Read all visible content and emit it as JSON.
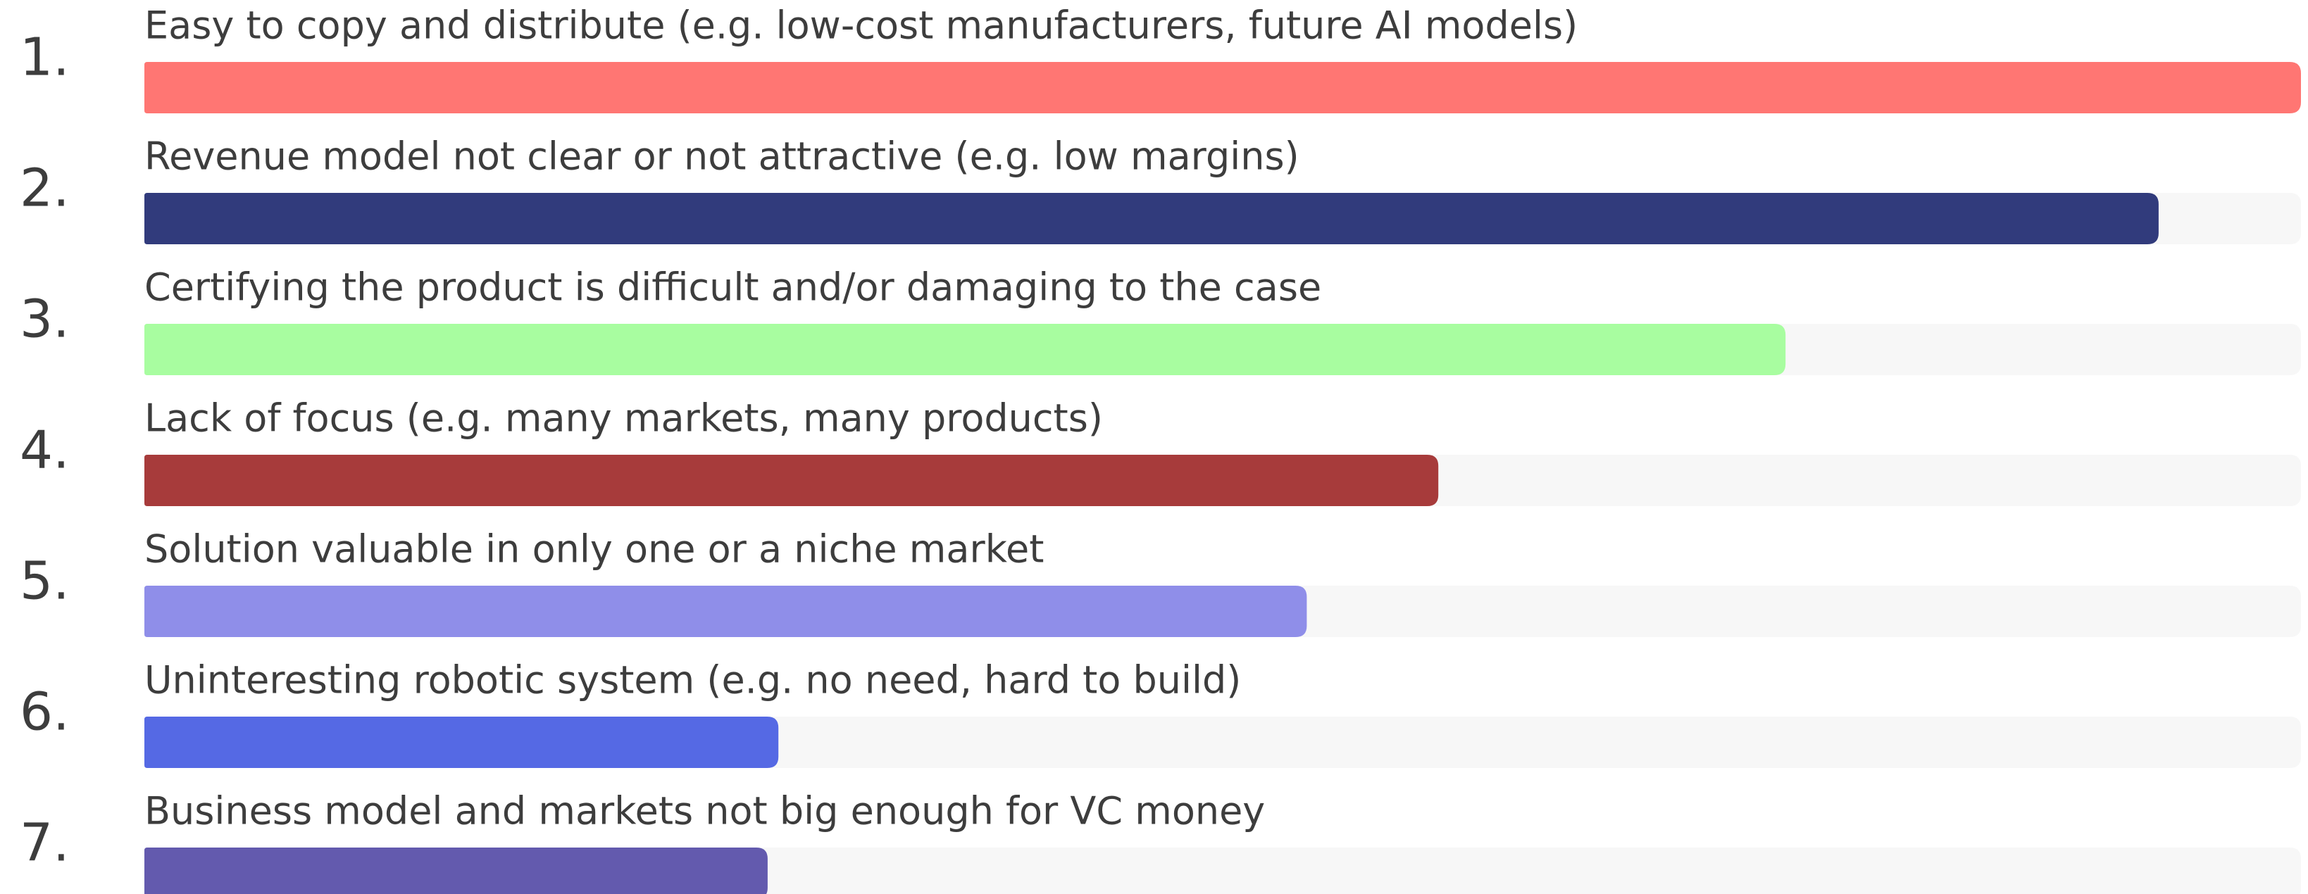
{
  "chart_data": {
    "type": "bar",
    "orientation": "horizontal",
    "ranks": [
      "1.",
      "2.",
      "3.",
      "4.",
      "5.",
      "6.",
      "7."
    ],
    "categories": [
      "Easy to copy and distribute (e.g. low-cost manufacturers, future AI models)",
      "Revenue model not clear or not attractive (e.g. low margins)",
      "Certifying the product is difficult and/or damaging to the case",
      "Lack of focus (e.g. many markets, many products)",
      "Solution valuable in only one or a niche market",
      "Uninteresting robotic system (e.g. no need, hard to build)",
      "Business model and markets not big enough for VC money"
    ],
    "values": [
      100,
      93.4,
      76.1,
      60,
      53.9,
      29.4,
      28.9
    ],
    "colors": [
      "#ff7673",
      "#313b7c",
      "#a8fda0",
      "#a73b3b",
      "#8f8ee9",
      "#5569e4",
      "#635aae"
    ],
    "xlim": [
      0,
      100
    ]
  }
}
